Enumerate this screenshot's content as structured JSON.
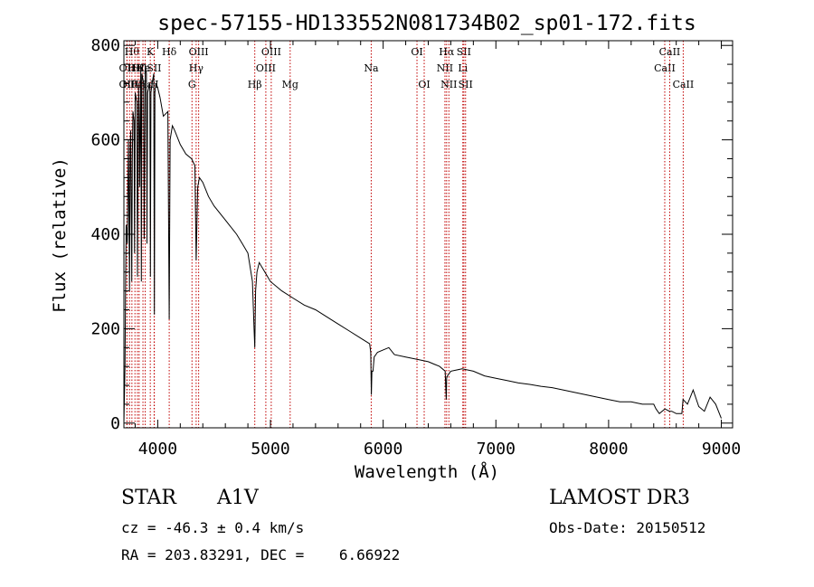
{
  "chart_data": {
    "type": "line",
    "title": "spec-57155-HD133552N081734B02_sp01-172.fits",
    "xlabel": "Wavelength (Å)",
    "ylabel": "Flux (relative)",
    "xlim": [
      3700,
      9100
    ],
    "ylim": [
      -10,
      810
    ],
    "xticks": [
      4000,
      5000,
      6000,
      7000,
      8000,
      9000
    ],
    "yticks": [
      0,
      200,
      400,
      600,
      800
    ],
    "series": [
      {
        "name": "spectrum",
        "x": [
          3700,
          3710,
          3715,
          3720,
          3730,
          3740,
          3745,
          3750,
          3755,
          3760,
          3770,
          3775,
          3780,
          3790,
          3795,
          3800,
          3815,
          3820,
          3830,
          3835,
          3840,
          3850,
          3855,
          3860,
          3875,
          3880,
          3890,
          3900,
          3905,
          3910,
          3930,
          3935,
          3940,
          3950,
          3965,
          3970,
          3975,
          3985,
          4000,
          4020,
          4050,
          4090,
          4102,
          4110,
          4130,
          4150,
          4200,
          4250,
          4300,
          4330,
          4341,
          4355,
          4370,
          4400,
          4450,
          4500,
          4600,
          4700,
          4750,
          4800,
          4840,
          4855,
          4861,
          4868,
          4880,
          4900,
          4950,
          5000,
          5100,
          5200,
          5300,
          5400,
          5500,
          5600,
          5700,
          5800,
          5880,
          5890,
          5895,
          5900,
          5910,
          5920,
          5950,
          6000,
          6050,
          6100,
          6200,
          6300,
          6400,
          6450,
          6500,
          6550,
          6560,
          6563,
          6570,
          6600,
          6700,
          6800,
          6900,
          7000,
          7100,
          7200,
          7300,
          7400,
          7500,
          7600,
          7700,
          7800,
          7900,
          8000,
          8100,
          8200,
          8300,
          8400,
          8420,
          8450,
          8500,
          8540,
          8560,
          8600,
          8650,
          8660,
          8700,
          8750,
          8800,
          8850,
          8900,
          8950,
          9000
        ],
        "values": [
          0,
          120,
          300,
          420,
          380,
          600,
          440,
          280,
          580,
          620,
          300,
          560,
          660,
          640,
          360,
          700,
          680,
          310,
          720,
          650,
          500,
          760,
          300,
          740,
          720,
          390,
          760,
          740,
          380,
          700,
          720,
          310,
          700,
          720,
          740,
          230,
          700,
          720,
          710,
          690,
          650,
          660,
          220,
          600,
          630,
          620,
          590,
          570,
          560,
          545,
          345,
          500,
          520,
          510,
          480,
          460,
          430,
          400,
          380,
          360,
          300,
          200,
          160,
          280,
          320,
          340,
          320,
          300,
          280,
          265,
          250,
          240,
          225,
          210,
          195,
          180,
          168,
          150,
          60,
          110,
          110,
          140,
          150,
          155,
          160,
          145,
          140,
          135,
          130,
          125,
          120,
          110,
          50,
          95,
          100,
          110,
          115,
          110,
          100,
          95,
          90,
          85,
          82,
          78,
          75,
          70,
          65,
          60,
          55,
          50,
          45,
          45,
          40,
          40,
          30,
          20,
          30,
          25,
          25,
          20,
          20,
          50,
          40,
          70,
          35,
          25,
          55,
          40,
          10
        ]
      }
    ],
    "lines": [
      {
        "x": 3727,
        "row": 2,
        "label": "OII"
      },
      {
        "x": 3727,
        "row": 1,
        "label": "OII"
      },
      {
        "x": 3750,
        "row": 2,
        "label": "Hθ"
      },
      {
        "x": 3771,
        "row": 0,
        "label": "Hθ"
      },
      {
        "x": 3798,
        "row": 1,
        "label": "He"
      },
      {
        "x": 3820,
        "row": 2,
        "label": "Hη"
      },
      {
        "x": 3835,
        "row": 1,
        "label": "Hζ"
      },
      {
        "x": 3869,
        "row": 1,
        "label": "He"
      },
      {
        "x": 3889,
        "row": 2,
        "label": "Hε"
      },
      {
        "x": 3934,
        "row": 0,
        "label": "K"
      },
      {
        "x": 3968,
        "row": 1,
        "label": "SII"
      },
      {
        "x": 3970,
        "row": 2,
        "label": "H"
      },
      {
        "x": 4102,
        "row": 0,
        "label": "Hδ"
      },
      {
        "x": 4304,
        "row": 2,
        "label": "G"
      },
      {
        "x": 4341,
        "row": 1,
        "label": "Hγ"
      },
      {
        "x": 4363,
        "row": 0,
        "label": "OIII"
      },
      {
        "x": 4861,
        "row": 2,
        "label": "Hβ"
      },
      {
        "x": 4959,
        "row": 1,
        "label": "OIII"
      },
      {
        "x": 5007,
        "row": 0,
        "label": "OIII"
      },
      {
        "x": 5175,
        "row": 2,
        "label": "Mg"
      },
      {
        "x": 5894,
        "row": 1,
        "label": "Na"
      },
      {
        "x": 6300,
        "row": 0,
        "label": "OI"
      },
      {
        "x": 6364,
        "row": 2,
        "label": "OI"
      },
      {
        "x": 6548,
        "row": 1,
        "label": "NII"
      },
      {
        "x": 6563,
        "row": 0,
        "label": "Hα"
      },
      {
        "x": 6583,
        "row": 2,
        "label": "NII"
      },
      {
        "x": 6707,
        "row": 1,
        "label": "Li"
      },
      {
        "x": 6716,
        "row": 0,
        "label": "SII"
      },
      {
        "x": 6731,
        "row": 2,
        "label": "SII"
      },
      {
        "x": 8498,
        "row": 1,
        "label": "CaII"
      },
      {
        "x": 8542,
        "row": 0,
        "label": "CaII"
      },
      {
        "x": 8662,
        "row": 2,
        "label": "CaII"
      }
    ]
  },
  "info": {
    "object_class": "STAR",
    "subclass": "A1V",
    "survey": "LAMOST DR3",
    "redshift": "cz = -46.3 ± 0.4 km/s",
    "obs_date": "Obs-Date: 20150512",
    "coords": "RA = 203.83291, DEC =    6.66922"
  }
}
